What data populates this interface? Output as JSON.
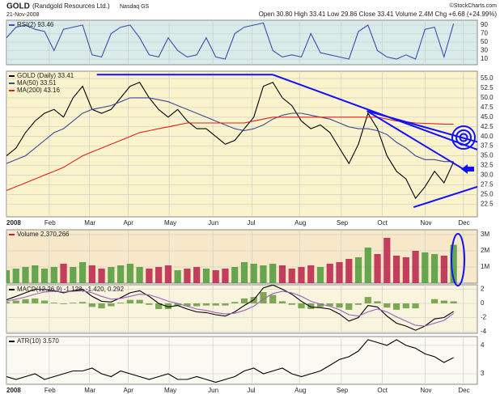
{
  "header": {
    "title": "GOLD",
    "name": "(Randgold Resources Ltd.)",
    "exchange": "Nasdaq GS",
    "date": "21-Nov-2008",
    "credit": "©StockCharts.com",
    "quote": "Open 30.80  High 33.41  Low 29.86  Close 33.41  Volume 2.4M  Chg +6.68 (+24.99%)"
  },
  "chart_data": [
    {
      "type": "line",
      "background": "#d9ecea",
      "ylim": [
        -3.3,
        101.4
      ],
      "yticks": [
        10,
        30,
        50,
        70,
        90
      ],
      "series": [
        {
          "name": "RSI(2) 93.46",
          "color": "#3a4fb0",
          "values": [
            60,
            85,
            90,
            80,
            75,
            30,
            80,
            85,
            90,
            20,
            15,
            70,
            85,
            90,
            60,
            20,
            15,
            60,
            30,
            15,
            20,
            60,
            15,
            10,
            70,
            85,
            90,
            95,
            30,
            15,
            20,
            15,
            70,
            25,
            20,
            15,
            10,
            75,
            90,
            30,
            15,
            10,
            20,
            10,
            80,
            85,
            15,
            93.46
          ]
        }
      ]
    },
    {
      "type": "line",
      "background": "#faf3cc",
      "xlim": [
        0,
        49.5
      ],
      "ylim": [
        19.2,
        56.9
      ],
      "x": [
        0,
        1,
        2,
        3,
        4,
        5,
        6,
        7,
        8,
        9,
        10,
        11,
        12,
        13,
        14,
        15,
        16,
        17,
        18,
        19,
        20,
        21,
        22,
        23,
        24,
        25,
        26,
        27,
        28,
        29,
        30,
        31,
        32,
        33,
        34,
        35,
        36,
        37,
        38,
        39,
        40,
        41,
        42,
        43,
        44,
        45,
        46,
        47
      ],
      "xticks": [
        {
          "value": 0,
          "label": "2008"
        },
        {
          "value": 4.5,
          "label": "Feb"
        },
        {
          "value": 8.7,
          "label": "Mar"
        },
        {
          "value": 12.8,
          "label": "Apr"
        },
        {
          "value": 17.1,
          "label": "May"
        },
        {
          "value": 21.7,
          "label": "Jun"
        },
        {
          "value": 25.8,
          "label": "Jul"
        },
        {
          "value": 30.8,
          "label": "Aug"
        },
        {
          "value": 35.2,
          "label": "Sep"
        },
        {
          "value": 39.5,
          "label": "Oct"
        },
        {
          "value": 44,
          "label": "Nov"
        },
        {
          "value": 48,
          "label": "Dec"
        }
      ],
      "yticks": [
        22.5,
        {
          "value": 25,
          "label": "25.0"
        },
        27.5,
        {
          "value": 30,
          "label": "30.0"
        },
        32.5,
        {
          "value": 35,
          "label": "35.0"
        },
        37.5,
        {
          "value": 40,
          "label": "40.0"
        },
        42.5,
        {
          "value": 45,
          "label": "45.0"
        },
        47.5,
        {
          "value": 50,
          "label": "50.0"
        },
        52.5,
        {
          "value": 55,
          "label": "55.0"
        }
      ],
      "series": [
        {
          "name": "GOLD (Daily) 33.41",
          "color": "#000000",
          "values": [
            35,
            37,
            41,
            44,
            46,
            47,
            45,
            50,
            53,
            47,
            46,
            47,
            50,
            53,
            54,
            50,
            47,
            45,
            47,
            44,
            42,
            42,
            40,
            38,
            39,
            42,
            45,
            53,
            54,
            50,
            48,
            44,
            42,
            43,
            41,
            37,
            33,
            38,
            46,
            42,
            35,
            31,
            29,
            24,
            27,
            31,
            28,
            33.41
          ]
        },
        {
          "name": "MA(50) 33.51",
          "color": "#3a4a9a",
          "values": [
            33,
            34,
            35,
            37,
            39,
            41,
            42,
            44,
            46,
            47,
            47.5,
            48,
            49,
            50,
            50,
            50,
            49.5,
            49,
            48,
            47,
            46,
            45,
            44,
            43,
            42,
            41.5,
            42,
            43,
            44.5,
            45.5,
            46,
            46,
            45.5,
            45,
            44.5,
            43.5,
            42.5,
            42,
            42,
            41.5,
            40.5,
            38.5,
            37,
            35,
            34,
            34,
            33.5,
            33.51
          ]
        },
        {
          "name": "MA(200) 43.16",
          "color": "#e02020",
          "values": [
            26,
            27,
            28,
            29,
            30,
            31,
            32,
            33.5,
            35,
            36,
            37,
            38,
            39,
            40,
            41,
            41.5,
            42,
            42.5,
            43,
            43.5,
            43.5,
            43.5,
            43.5,
            43.5,
            43.5,
            43.5,
            44,
            44.5,
            45,
            45,
            45,
            45,
            45,
            45,
            45,
            45,
            45,
            45,
            45,
            45,
            44.5,
            44,
            43.8,
            43.5,
            43.4,
            43.3,
            43.2,
            43.16
          ]
        }
      ],
      "trendlines": [
        [
          [
            9.5,
            56
          ],
          [
            28,
            56
          ]
        ],
        [
          [
            28,
            56
          ],
          [
            49.5,
            36.6
          ]
        ],
        [
          [
            37.9,
            46.6
          ],
          [
            49.5,
            38.6
          ]
        ],
        [
          [
            37.9,
            46.6
          ],
          [
            48.2,
            31.3
          ]
        ],
        [
          [
            42.8,
            21.7
          ],
          [
            49.5,
            27
          ]
        ]
      ],
      "trendline_color": "#1010ff"
    },
    {
      "type": "bar",
      "background": "#f6e8c8",
      "ylim": [
        0,
        3300000
      ],
      "up_color": "#4c9a3a",
      "down_color": "#b8204a",
      "yticks": [
        {
          "value": 1000000,
          "label": "1M"
        },
        {
          "value": 2000000,
          "label": "2M"
        },
        {
          "value": 3000000,
          "label": "3M"
        }
      ],
      "series": [
        {
          "name": "Volume 2,370,266",
          "color": "#b8204a",
          "values": [
            800000,
            900000,
            1000000,
            1100000,
            900000,
            1000000,
            1200000,
            1000000,
            1300000,
            1100000,
            900000,
            1000000,
            1100000,
            1200000,
            1000000,
            900000,
            1000000,
            1100000,
            800000,
            900000,
            1000000,
            900000,
            800000,
            900000,
            1000000,
            1300000,
            1200000,
            1100000,
            1200000,
            1100000,
            900000,
            1000000,
            1100000,
            1000000,
            1200000,
            1300000,
            1500000,
            1600000,
            2200000,
            1800000,
            2800000,
            1700000,
            1600000,
            2000000,
            1900000,
            1800000,
            1700000,
            2370266
          ]
        }
      ]
    },
    {
      "type": "line",
      "background": "#f8f4de",
      "ylim": [
        -4.23,
        2.63
      ],
      "yticks": [
        -4,
        -2,
        0,
        2
      ],
      "series": [
        {
          "type": "bar",
          "color": "#6a9a3a",
          "values": [
            0.2,
            0.4,
            0.6,
            0.7,
            0.4,
            0.1,
            -0.1,
            0.1,
            0.2,
            -0.5,
            -0.7,
            -0.4,
            0.1,
            0.5,
            0.5,
            -0.2,
            -0.8,
            -0.8,
            -0.3,
            -0.4,
            -0.4,
            -0.3,
            -0.3,
            -0.3,
            0.2,
            0.7,
            0.9,
            1.6,
            1.2,
            0.3,
            -0.2,
            -0.7,
            -0.8,
            -0.5,
            -0.4,
            -0.6,
            -0.9,
            -0.2,
            0.9,
            0.3,
            -0.6,
            -0.9,
            -0.7,
            -0.7,
            0,
            0.6,
            0.4,
            0.292
          ]
        },
        {
          "name": "MACD(12,26,9) -1.128, -1.420, 0.292",
          "color": "#000000",
          "values": [
            0.5,
            1,
            1.5,
            2,
            2,
            1.8,
            1.5,
            1.8,
            2,
            1,
            0.3,
            0.2,
            0.8,
            1.5,
            1.8,
            1,
            0,
            -0.5,
            -0.3,
            -0.8,
            -1.2,
            -1.3,
            -1.6,
            -1.8,
            -1.2,
            -0.3,
            0.5,
            2.2,
            2.6,
            2,
            1.3,
            0.3,
            -0.5,
            -0.6,
            -0.8,
            -1.5,
            -2.5,
            -2,
            -0.3,
            -0.5,
            -1.8,
            -2.8,
            -3.2,
            -3.8,
            -3.2,
            -2.2,
            -2,
            -1.128
          ]
        },
        {
          "color": "#9b5fc0",
          "values": [
            0.3,
            0.6,
            0.9,
            1.3,
            1.6,
            1.7,
            1.6,
            1.7,
            1.8,
            1.5,
            1,
            0.6,
            0.7,
            1,
            1.3,
            1.2,
            0.8,
            0.3,
            0,
            -0.4,
            -0.8,
            -1,
            -1.3,
            -1.5,
            -1.4,
            -1,
            -0.4,
            0.6,
            1.4,
            1.7,
            1.5,
            1,
            0.3,
            -0.1,
            -0.4,
            -0.9,
            -1.6,
            -1.8,
            -1.2,
            -0.8,
            -1.2,
            -1.9,
            -2.5,
            -3.1,
            -3.2,
            -2.8,
            -2.4,
            -1.42
          ]
        }
      ]
    },
    {
      "type": "line",
      "background": "#fbfaf2",
      "ylim": [
        2.63,
        4.31
      ],
      "yticks": [
        3,
        4
      ],
      "xticks": [
        {
          "value": 0,
          "label": "2008"
        },
        {
          "value": 4.5,
          "label": "Feb"
        },
        {
          "value": 8.7,
          "label": "Mar"
        },
        {
          "value": 12.8,
          "label": "Apr"
        },
        {
          "value": 17.1,
          "label": "May"
        },
        {
          "value": 21.7,
          "label": "Jun"
        },
        {
          "value": 25.8,
          "label": "Jul"
        },
        {
          "value": 30.8,
          "label": "Aug"
        },
        {
          "value": 35.2,
          "label": "Sep"
        },
        {
          "value": 39.5,
          "label": "Oct"
        },
        {
          "value": 44,
          "label": "Nov"
        },
        {
          "value": 48,
          "label": "Dec"
        }
      ],
      "series": [
        {
          "name": "ATR(10) 3.570",
          "color": "#000000",
          "values": [
            2.9,
            2.8,
            2.9,
            3,
            2.8,
            2.9,
            3,
            3.1,
            3.1,
            3.2,
            3,
            2.9,
            3.1,
            3,
            2.9,
            2.8,
            2.9,
            3,
            2.8,
            2.8,
            2.9,
            2.8,
            2.7,
            2.8,
            2.9,
            3.1,
            3.2,
            3,
            3.1,
            3.2,
            3,
            2.9,
            3,
            3.1,
            3.3,
            3.5,
            3.6,
            3.8,
            4.2,
            4.1,
            4,
            4.2,
            4,
            3.9,
            3.7,
            3.6,
            3.4,
            3.57
          ]
        }
      ]
    }
  ]
}
